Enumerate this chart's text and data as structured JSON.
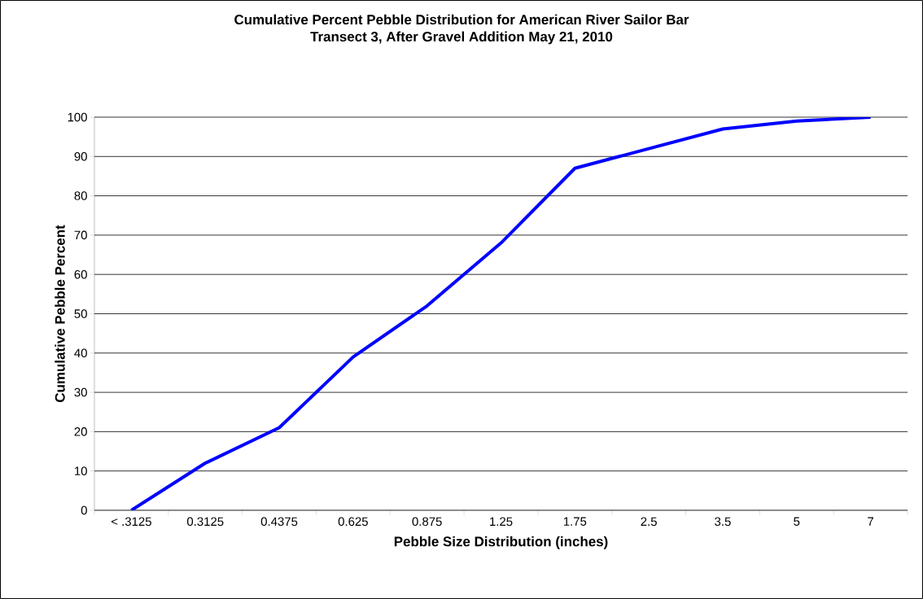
{
  "chart_data": {
    "type": "line",
    "title": "Cumulative Percent Pebble Distribution for American River Sailor Bar",
    "subtitle": "Transect 3, After Gravel Addition May 21, 2010",
    "xlabel": "Pebble Size Distribution (inches)",
    "ylabel": "Cumulative Pebble Percent",
    "categories": [
      "< .3125",
      "0.3125",
      "0.4375",
      "0.625",
      "0.875",
      "1.25",
      "1.75",
      "2.5",
      "3.5",
      "5",
      "7"
    ],
    "values": [
      0,
      12,
      21,
      39,
      52,
      68,
      87,
      92,
      97,
      99,
      100
    ],
    "color": "#0000ff",
    "ylim": [
      0,
      100
    ],
    "yticks": [
      0,
      10,
      20,
      30,
      40,
      50,
      60,
      70,
      80,
      90,
      100
    ],
    "grid": "y"
  }
}
